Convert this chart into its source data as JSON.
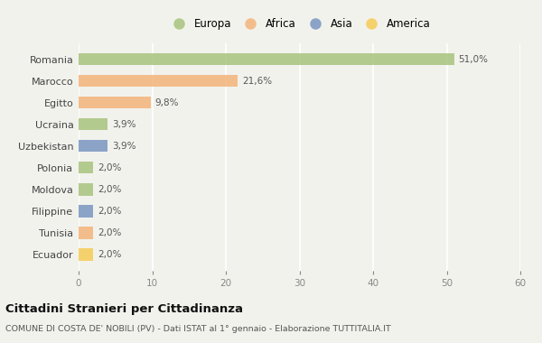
{
  "countries": [
    "Romania",
    "Marocco",
    "Egitto",
    "Ucraina",
    "Uzbekistan",
    "Polonia",
    "Moldova",
    "Filippine",
    "Tunisia",
    "Ecuador"
  ],
  "values": [
    51.0,
    21.6,
    9.8,
    3.9,
    3.9,
    2.0,
    2.0,
    2.0,
    2.0,
    2.0
  ],
  "labels": [
    "51,0%",
    "21,6%",
    "9,8%",
    "3,9%",
    "3,9%",
    "2,0%",
    "2,0%",
    "2,0%",
    "2,0%",
    "2,0%"
  ],
  "colors": [
    "#a8c47e",
    "#f4b47a",
    "#f4b47a",
    "#a8c47e",
    "#7a96c2",
    "#a8c47e",
    "#a8c47e",
    "#7a96c2",
    "#f4b47a",
    "#f5cc55"
  ],
  "legend": [
    {
      "label": "Europa",
      "color": "#a8c47e"
    },
    {
      "label": "Africa",
      "color": "#f4b47a"
    },
    {
      "label": "Asia",
      "color": "#7a96c2"
    },
    {
      "label": "America",
      "color": "#f5cc55"
    }
  ],
  "xlim": [
    0,
    60
  ],
  "xticks": [
    0,
    10,
    20,
    30,
    40,
    50,
    60
  ],
  "title": "Cittadini Stranieri per Cittadinanza",
  "subtitle": "COMUNE DI COSTA DE' NOBILI (PV) - Dati ISTAT al 1° gennaio - Elaborazione TUTTITALIA.IT",
  "background_color": "#f2f2ed",
  "grid_color": "#ffffff",
  "bar_alpha": 0.85,
  "bar_height": 0.55
}
